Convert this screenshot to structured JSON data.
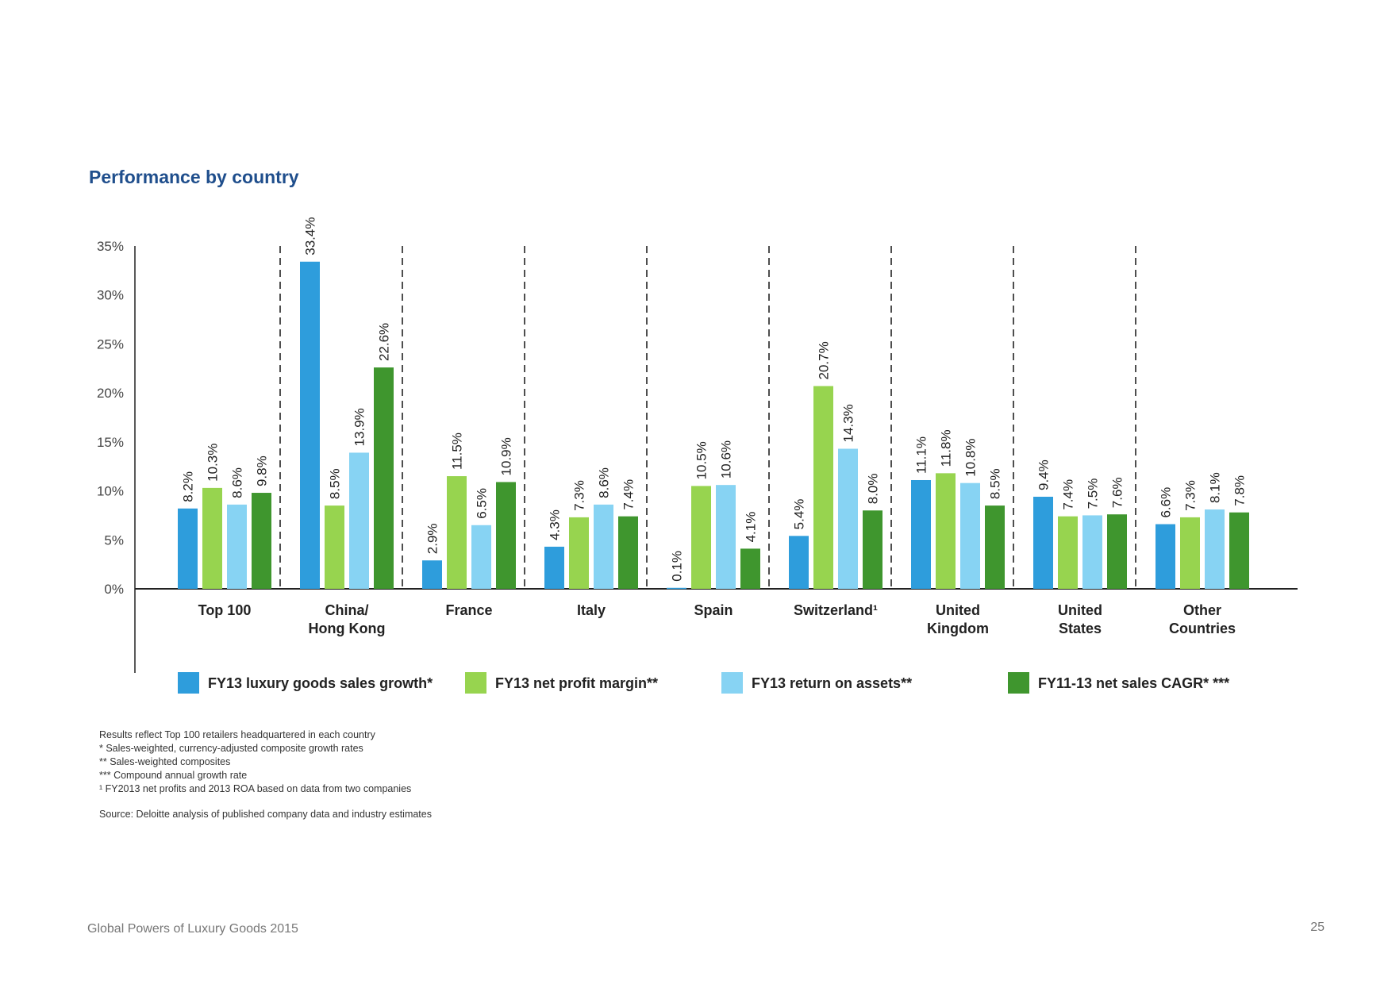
{
  "page": {
    "title": "Performance by country",
    "footer_title": "Global Powers of Luxury Goods 2015",
    "page_number": "25"
  },
  "notes": [
    "Results reflect Top 100 retailers headquartered in each country",
    "* Sales-weighted, currency-adjusted composite growth rates",
    "** Sales-weighted composites",
    "*** Compound annual growth rate",
    "¹ FY2013 net profits and 2013 ROA based on data from two companies"
  ],
  "source": "Source: Deloitte analysis of published company data and industry estimates",
  "chart_data": {
    "type": "bar",
    "title": "Performance by country",
    "categories": [
      [
        "Top 100"
      ],
      [
        "China/",
        "Hong Kong"
      ],
      [
        "France"
      ],
      [
        "Italy"
      ],
      [
        "Spain"
      ],
      [
        "Switzerland¹"
      ],
      [
        "United",
        "Kingdom"
      ],
      [
        "United",
        "States"
      ],
      [
        "Other",
        "Countries"
      ]
    ],
    "series": [
      {
        "name": "FY13 luxury goods sales growth*",
        "color": "#2e9ddc",
        "values": [
          8.2,
          33.4,
          2.9,
          4.3,
          0.1,
          5.4,
          11.1,
          9.4,
          6.6
        ]
      },
      {
        "name": "FY13 net profit margin**",
        "color": "#97d44f",
        "values": [
          10.3,
          8.5,
          11.5,
          7.3,
          10.5,
          20.7,
          11.8,
          7.4,
          7.3
        ]
      },
      {
        "name": "FY13 return on assets**",
        "color": "#87d3f3",
        "values": [
          8.6,
          13.9,
          6.5,
          8.6,
          10.6,
          14.3,
          10.8,
          7.5,
          8.1
        ]
      },
      {
        "name": "FY11-13 net sales CAGR* ***",
        "color": "#3f962e",
        "values": [
          9.8,
          22.6,
          10.9,
          7.4,
          4.1,
          8.0,
          8.5,
          7.6,
          7.8
        ]
      }
    ],
    "yticks": [
      "0%",
      "5%",
      "10%",
      "15%",
      "20%",
      "25%",
      "30%",
      "35%"
    ],
    "ylim": [
      0,
      35
    ],
    "value_suffix": "%",
    "legend_position": "bottom",
    "dividers": "dashed",
    "grid": false
  }
}
